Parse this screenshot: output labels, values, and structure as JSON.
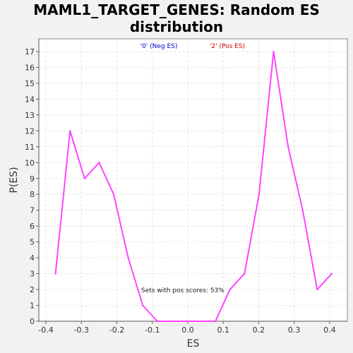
{
  "chart_data": {
    "type": "line",
    "title_lines": [
      "MAML1_TARGET_GENES: Random ES",
      "distribution"
    ],
    "xlabel": "ES",
    "ylabel": "P(ES)",
    "xlim": [
      -0.42,
      0.45
    ],
    "ylim": [
      0,
      17.8
    ],
    "x_ticks": [
      -0.4,
      -0.3,
      -0.2,
      -0.1,
      0.0,
      0.1,
      0.2,
      0.3,
      0.4
    ],
    "x_tick_labels": [
      "-0.4",
      "-0.3",
      "-0.2",
      "-0.1",
      "0.0",
      "0.1",
      "0.2",
      "0.3",
      "0.4"
    ],
    "y_ticks": [
      0,
      1,
      2,
      3,
      4,
      5,
      6,
      7,
      8,
      9,
      10,
      11,
      12,
      13,
      14,
      15,
      16,
      17
    ],
    "grid": true,
    "legend": [
      {
        "label": "'0' (Neg ES)",
        "color": "#0000cc"
      },
      {
        "label": "'2' (Pos ES)",
        "color": "#cc0000"
      }
    ],
    "annotation": "Sets with pos scores: 53%",
    "series": [
      {
        "color": "#ff44ff",
        "x": [
          -0.373,
          -0.332,
          -0.291,
          -0.25,
          -0.209,
          -0.168,
          -0.127,
          -0.086,
          -0.045,
          -0.004,
          0.037,
          0.078,
          0.119,
          0.16,
          0.201,
          0.242,
          0.283,
          0.324,
          0.365,
          0.406
        ],
        "y": [
          3,
          12,
          9,
          10,
          8,
          4,
          1,
          0,
          0,
          0,
          0,
          0,
          2,
          3,
          8,
          17,
          11,
          7,
          2,
          3
        ]
      }
    ]
  }
}
